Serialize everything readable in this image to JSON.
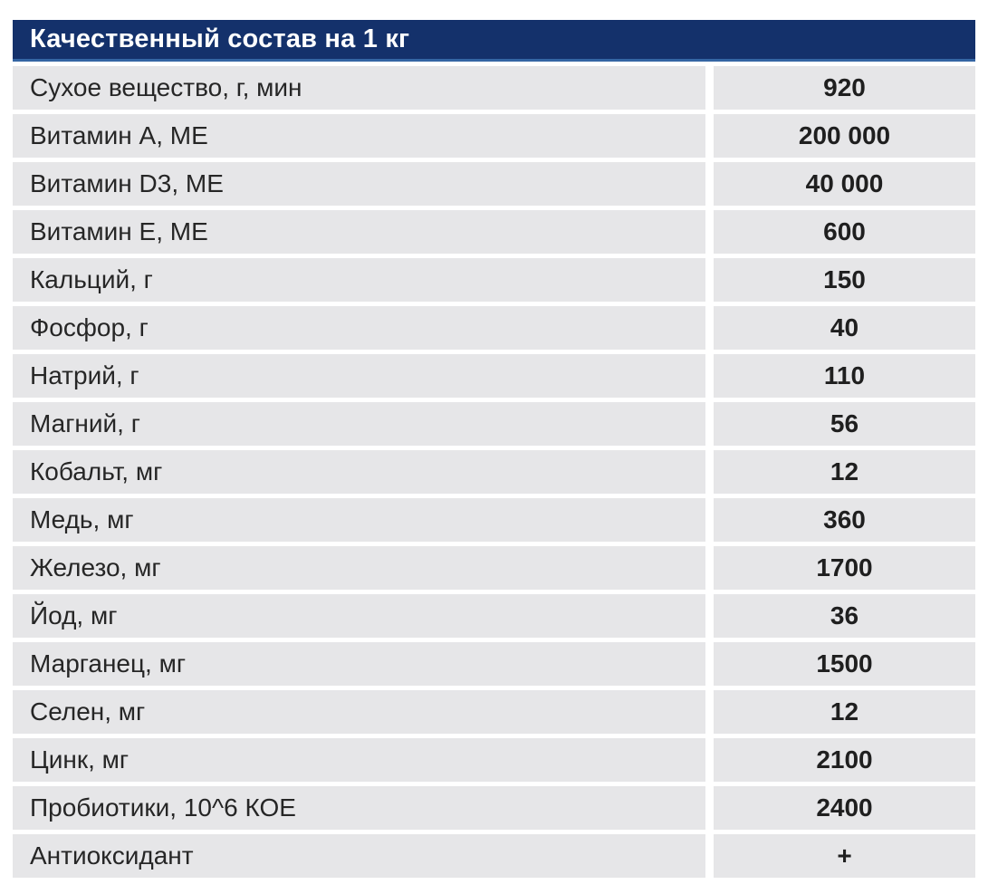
{
  "chart_data": {
    "type": "table",
    "title": "Качественный состав на 1 кг",
    "rows": [
      {
        "label": "Сухое вещество, г, мин",
        "value": "920"
      },
      {
        "label": "Витамин А, МЕ",
        "value": "200 000"
      },
      {
        "label": "Витамин D3, МЕ",
        "value": "40 000"
      },
      {
        "label": "Витамин Е, МЕ",
        "value": "600"
      },
      {
        "label": "Кальций, г",
        "value": "150"
      },
      {
        "label": "Фосфор, г",
        "value": "40"
      },
      {
        "label": "Натрий, г",
        "value": "110"
      },
      {
        "label": "Магний, г",
        "value": "56"
      },
      {
        "label": "Кобальт, мг",
        "value": "12"
      },
      {
        "label": "Медь, мг",
        "value": "360"
      },
      {
        "label": "Железо, мг",
        "value": "1700"
      },
      {
        "label": "Йод, мг",
        "value": "36"
      },
      {
        "label": "Марганец, мг",
        "value": "1500"
      },
      {
        "label": "Селен, мг",
        "value": "12"
      },
      {
        "label": "Цинк, мг",
        "value": "2100"
      },
      {
        "label": "Пробиотики, 10^6 КОЕ",
        "value": "2400"
      },
      {
        "label": "Антиоксидант",
        "value": "+"
      }
    ],
    "layout": {
      "legend": "none",
      "grid": "off",
      "header_bg": "#14316B",
      "header_edge": "#3465A3",
      "header_text_color": "#FFFFFF",
      "row_bg": "#E6E6E8",
      "label_text_color": "#262626",
      "value_text_color": "#1F1F1F",
      "page_bg": "#FFFFFF"
    }
  }
}
